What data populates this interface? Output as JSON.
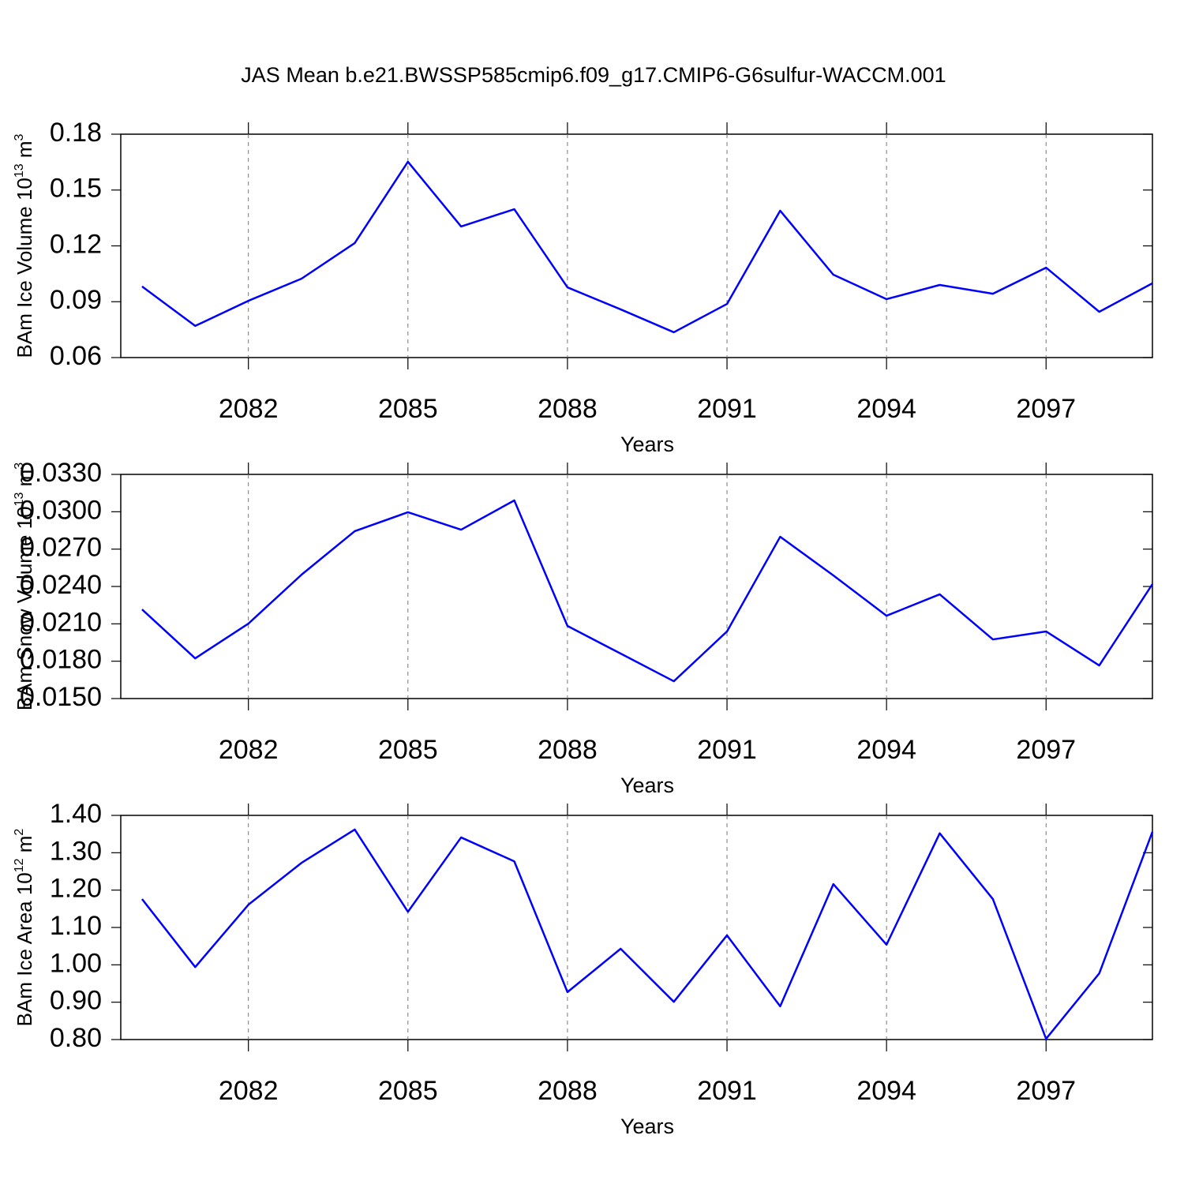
{
  "chart_data": [
    {
      "type": "line",
      "title": "JAS Mean b.e21.BWSSP585cmip6.f09_g17.CMIP6-G6sulfur-WACCM.001",
      "ylabel": [
        "BAm Ice Volume 10",
        "13",
        " m",
        "3"
      ],
      "xlabel": "Years",
      "color": "#0000ff",
      "xgrid": true,
      "x": [
        2080,
        2081,
        2082,
        2083,
        2084,
        2085,
        2086,
        2087,
        2088,
        2089,
        2090,
        2091,
        2092,
        2093,
        2094,
        2095,
        2096,
        2097,
        2098,
        2099
      ],
      "values": [
        0.0982,
        0.077,
        0.0905,
        0.1024,
        0.1215,
        0.1652,
        0.1304,
        0.1397,
        0.0977,
        0.0859,
        0.0736,
        0.0888,
        0.1389,
        0.1045,
        0.0914,
        0.099,
        0.0943,
        0.1083,
        0.0846,
        0.0999
      ],
      "xlim": [
        2079.6,
        2099
      ],
      "xticks": [
        2082,
        2085,
        2088,
        2091,
        2094,
        2097
      ],
      "ylim": [
        0.06,
        0.18
      ],
      "yticks": [
        0.06,
        0.09,
        0.12,
        0.15,
        0.18
      ]
    },
    {
      "type": "line",
      "ylabel": [
        "BAm Snow Volume 10",
        "13",
        " m",
        "3"
      ],
      "xlabel": "Years",
      "color": "#0000ff",
      "xgrid": true,
      "x": [
        2080,
        2081,
        2082,
        2083,
        2084,
        2085,
        2086,
        2087,
        2088,
        2089,
        2090,
        2091,
        2092,
        2093,
        2094,
        2095,
        2096,
        2097,
        2098,
        2099
      ],
      "values": [
        0.02216,
        0.01823,
        0.02102,
        0.02495,
        0.02844,
        0.02996,
        0.02856,
        0.03091,
        0.02083,
        0.01861,
        0.01639,
        0.02039,
        0.02799,
        0.02489,
        0.02165,
        0.02337,
        0.01975,
        0.02039,
        0.01766,
        0.02419
      ],
      "xlim": [
        2079.6,
        2099
      ],
      "xticks": [
        2082,
        2085,
        2088,
        2091,
        2094,
        2097
      ],
      "ylim": [
        0.015,
        0.033
      ],
      "yticks": [
        {
          "value": 0.015,
          "label": "0.0150"
        },
        {
          "value": 0.018,
          "label": "0.0180"
        },
        {
          "value": 0.021,
          "label": "0.0210"
        },
        {
          "value": 0.024,
          "label": "0.0240"
        },
        {
          "value": 0.027,
          "label": "0.0270"
        },
        {
          "value": 0.03,
          "label": "0.0300"
        },
        {
          "value": 0.033,
          "label": "0.0330"
        }
      ]
    },
    {
      "type": "line",
      "ylabel": [
        "BAm Ice Area 10",
        "12",
        " m",
        "2"
      ],
      "xlabel": "Years",
      "color": "#0000ff",
      "xgrid": true,
      "x": [
        2080,
        2081,
        2082,
        2083,
        2084,
        2085,
        2086,
        2087,
        2088,
        2089,
        2090,
        2091,
        2092,
        2093,
        2094,
        2095,
        2096,
        2097,
        2098,
        2099
      ],
      "values": [
        1.176,
        0.994,
        1.161,
        1.273,
        1.362,
        1.142,
        1.341,
        1.277,
        0.927,
        1.043,
        0.901,
        1.079,
        0.889,
        1.216,
        1.054,
        1.352,
        1.176,
        0.802,
        0.977,
        1.356
      ],
      "xlim": [
        2079.6,
        2099
      ],
      "xticks": [
        2082,
        2085,
        2088,
        2091,
        2094,
        2097
      ],
      "ylim": [
        0.8,
        1.4
      ],
      "yticks": [
        {
          "value": 0.8,
          "label": "0.80"
        },
        {
          "value": 0.9,
          "label": "0.90"
        },
        {
          "value": 1.0,
          "label": "1.00"
        },
        {
          "value": 1.1,
          "label": "1.10"
        },
        {
          "value": 1.2,
          "label": "1.20"
        },
        {
          "value": 1.3,
          "label": "1.30"
        },
        {
          "value": 1.4,
          "label": "1.40"
        }
      ]
    }
  ]
}
